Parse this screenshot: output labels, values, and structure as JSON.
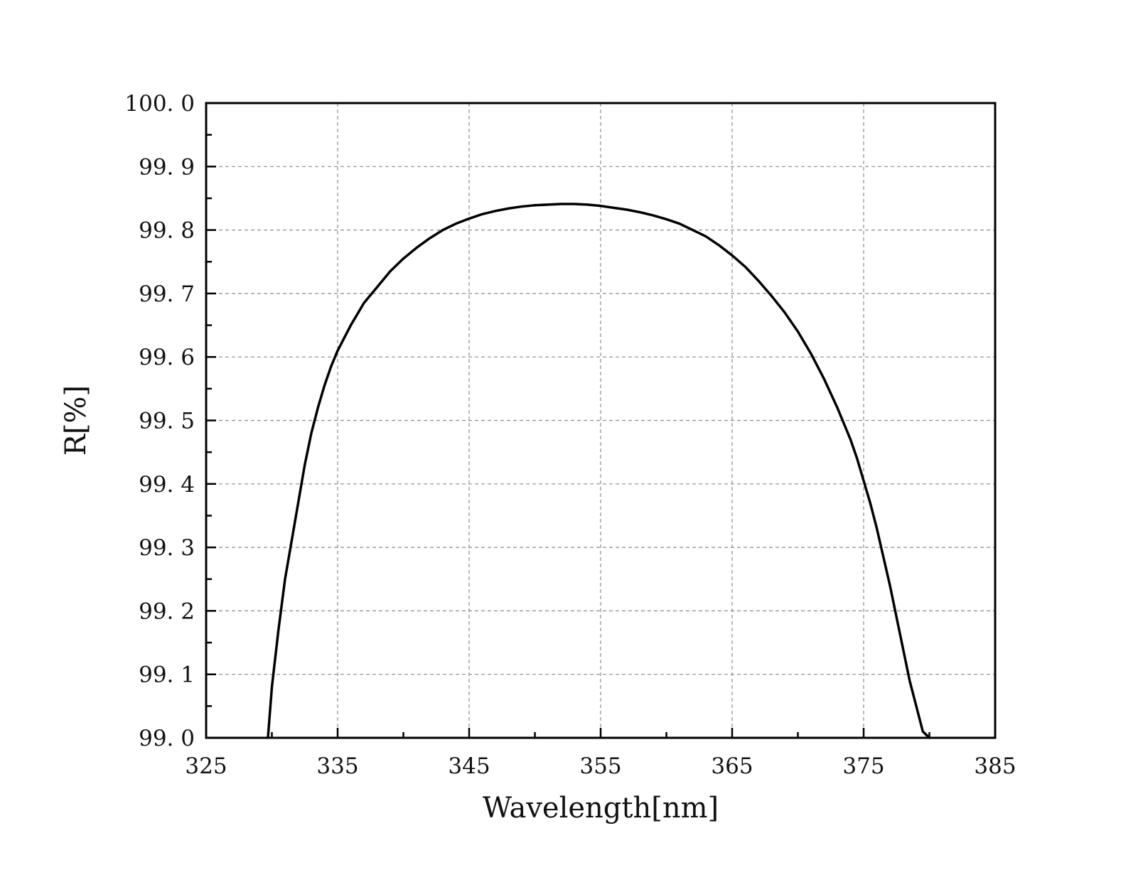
{
  "chart_data": {
    "type": "line",
    "title": "",
    "xlabel": "Wavelength[nm]",
    "ylabel": "R[%]",
    "xlim": [
      325,
      385
    ],
    "ylim": [
      99.0,
      100.0
    ],
    "x_ticks": [
      325,
      335,
      345,
      355,
      365,
      375,
      385
    ],
    "x_tick_labels": [
      "325",
      "335",
      "345",
      "355",
      "365",
      "375",
      "385"
    ],
    "x_minor_step": 5,
    "y_ticks": [
      99.0,
      99.1,
      99.2,
      99.3,
      99.4,
      99.5,
      99.6,
      99.7,
      99.8,
      99.9,
      100.0
    ],
    "y_tick_labels": [
      "99. 0",
      "99. 1",
      "99. 2",
      "99. 3",
      "99. 4",
      "99. 5",
      "99. 6",
      "99. 7",
      "99. 8",
      "99. 9",
      "100. 0"
    ],
    "y_minor_step": 0.05,
    "grid": true,
    "legend": "none",
    "line_color": "#000000",
    "series": [
      {
        "x": [
          329.7,
          330.0,
          330.5,
          331.0,
          331.5,
          332.0,
          332.5,
          333.0,
          333.5,
          334.0,
          334.5,
          335.0,
          335.5,
          336.0,
          337.0,
          338.0,
          339.0,
          340.0,
          341.0,
          342.0,
          343.0,
          344.0,
          345.0,
          346.0,
          347.0,
          348.0,
          349.0,
          350.0,
          351.0,
          352.0,
          353.0,
          354.0,
          355.0,
          356.0,
          357.0,
          358.0,
          359.0,
          360.0,
          361.0,
          362.0,
          363.0,
          364.0,
          365.0,
          366.0,
          367.0,
          368.0,
          369.0,
          370.0,
          371.0,
          372.0,
          373.0,
          374.0,
          374.5,
          375.0,
          375.5,
          376.0,
          376.5,
          377.0,
          377.5,
          378.0,
          378.5,
          379.0,
          379.5,
          380.0
        ],
        "values": [
          99.0,
          99.08,
          99.17,
          99.25,
          99.31,
          99.37,
          99.43,
          99.48,
          99.52,
          99.555,
          99.585,
          99.61,
          99.63,
          99.65,
          99.685,
          99.71,
          99.735,
          99.755,
          99.772,
          99.787,
          99.8,
          99.81,
          99.818,
          99.825,
          99.83,
          99.834,
          99.837,
          99.839,
          99.84,
          99.841,
          99.841,
          99.84,
          99.838,
          99.835,
          99.832,
          99.828,
          99.823,
          99.817,
          99.81,
          99.8,
          99.79,
          99.776,
          99.76,
          99.742,
          99.72,
          99.696,
          99.67,
          99.64,
          99.605,
          99.565,
          99.52,
          99.47,
          99.44,
          99.405,
          99.37,
          99.33,
          99.285,
          99.24,
          99.19,
          99.14,
          99.09,
          99.05,
          99.01,
          99.0
        ]
      }
    ]
  }
}
